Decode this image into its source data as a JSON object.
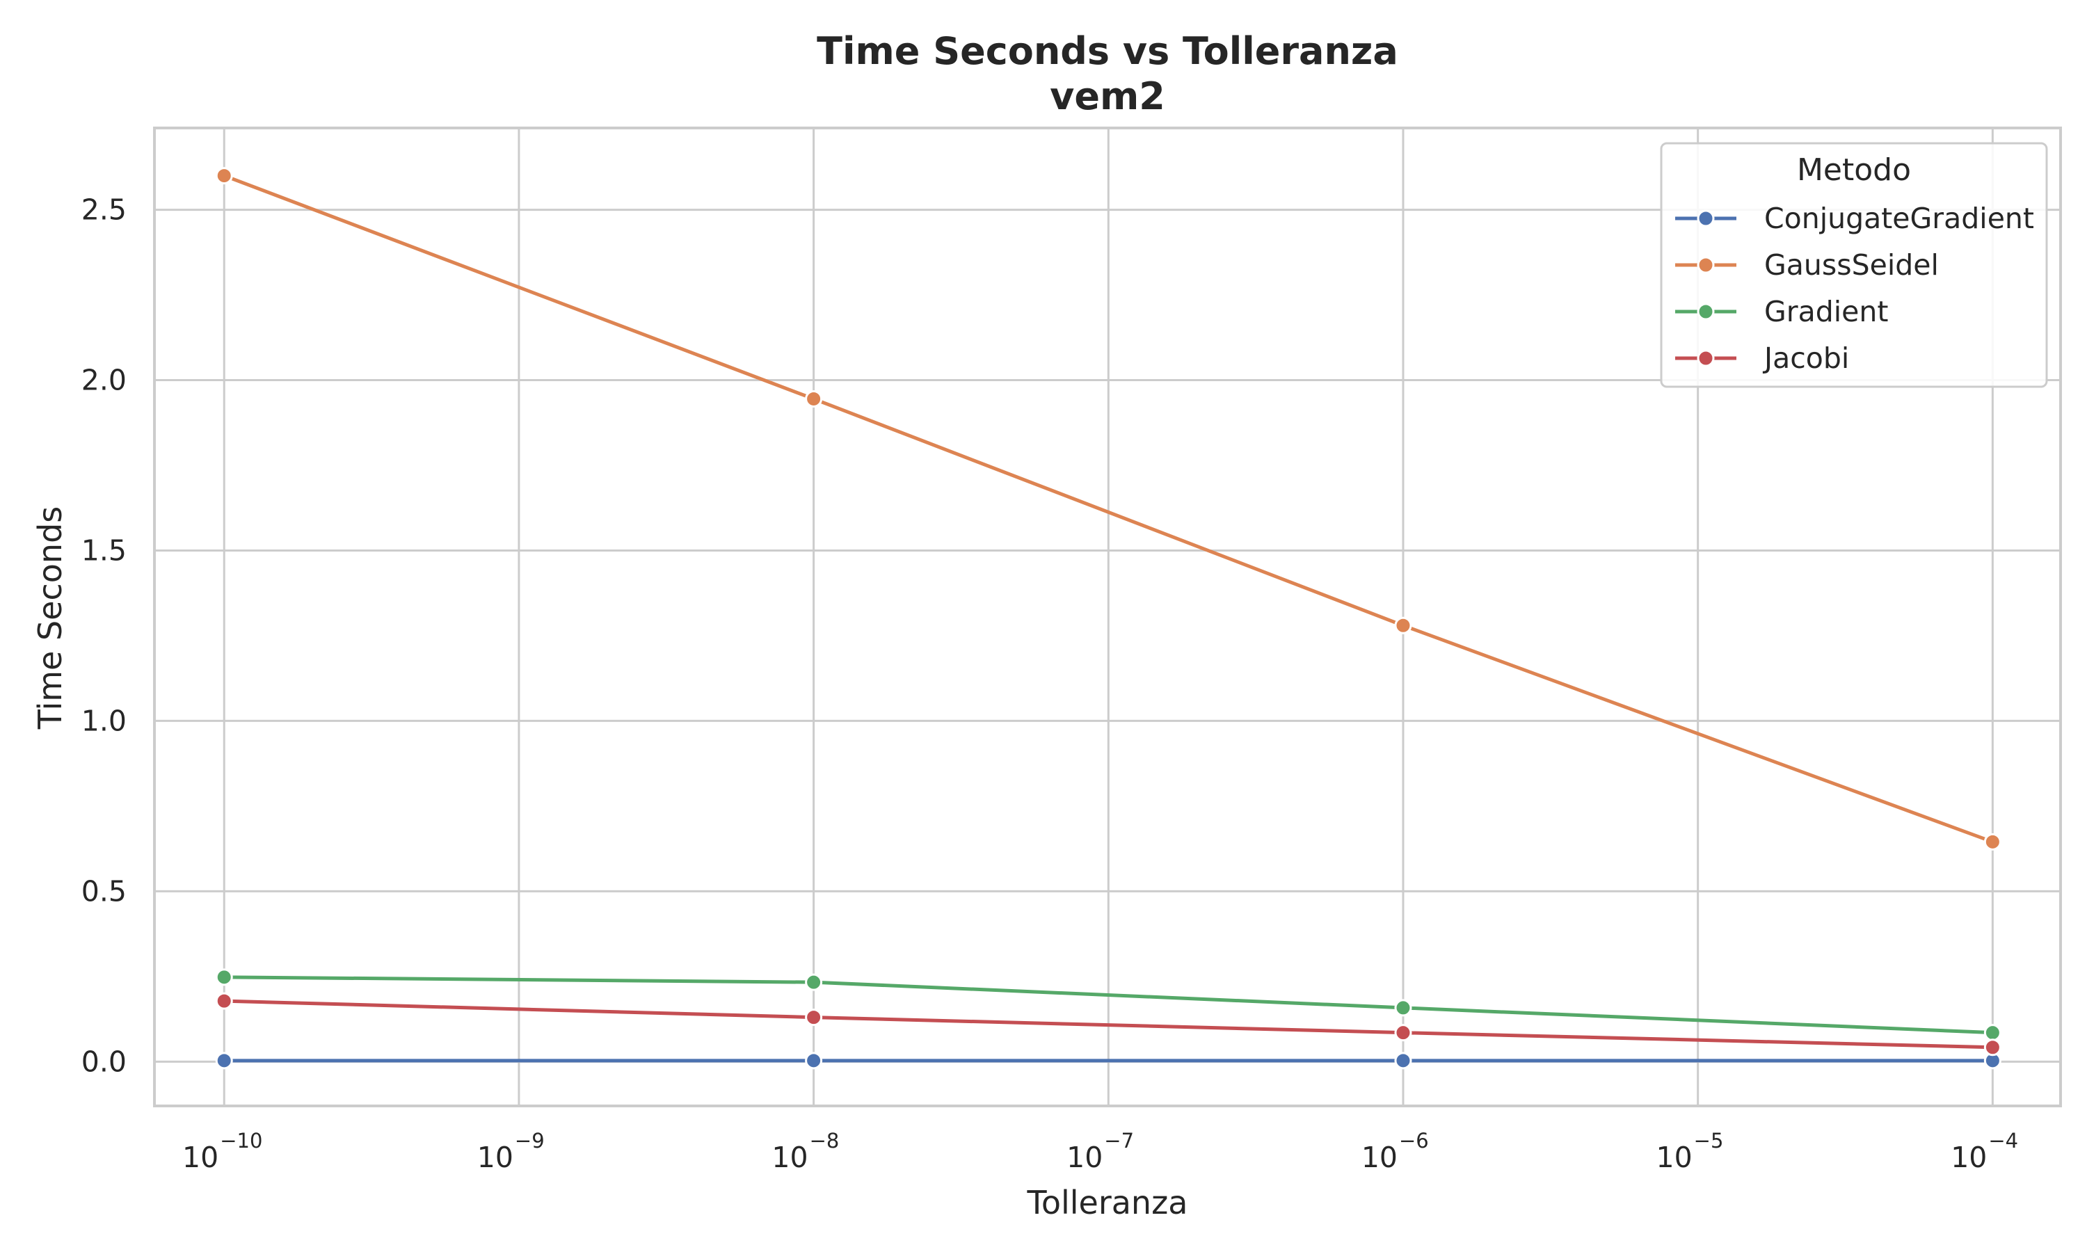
{
  "chart_data": {
    "type": "line",
    "title": [
      "Time Seconds vs        Tolleranza",
      "vem2"
    ],
    "xlabel": "Tolleranza",
    "ylabel": "Time Seconds",
    "xscale": "log",
    "x": [
      1e-10,
      1e-08,
      1e-06,
      0.0001
    ],
    "xlim": [
      5.8e-11,
      0.00017
    ],
    "xticks": [
      {
        "base": "10",
        "exp": "−10",
        "value": 1e-10
      },
      {
        "base": "10",
        "exp": "−9",
        "value": 1e-09
      },
      {
        "base": "10",
        "exp": "−8",
        "value": 1e-08
      },
      {
        "base": "10",
        "exp": "−7",
        "value": 1e-07
      },
      {
        "base": "10",
        "exp": "−6",
        "value": 1e-06
      },
      {
        "base": "10",
        "exp": "−5",
        "value": 1e-05
      },
      {
        "base": "10",
        "exp": "−4",
        "value": 0.0001
      }
    ],
    "ylim": [
      -0.13,
      2.74
    ],
    "yticks": [
      {
        "label": "0.0",
        "value": 0.0
      },
      {
        "label": "0.5",
        "value": 0.5
      },
      {
        "label": "1.0",
        "value": 1.0
      },
      {
        "label": "1.5",
        "value": 1.5
      },
      {
        "label": "2.0",
        "value": 2.0
      },
      {
        "label": "2.5",
        "value": 2.5
      }
    ],
    "grid": true,
    "legend": {
      "title": "Metodo",
      "position": "top-right"
    },
    "series": [
      {
        "name": "ConjugateGradient",
        "color": "#4c72b0",
        "values": [
          0.003,
          0.003,
          0.003,
          0.003
        ]
      },
      {
        "name": "GaussSeidel",
        "color": "#dd8452",
        "values": [
          2.6,
          1.945,
          1.28,
          0.645
        ]
      },
      {
        "name": "Gradient",
        "color": "#55a868",
        "values": [
          0.248,
          0.233,
          0.158,
          0.085
        ]
      },
      {
        "name": "Jacobi",
        "color": "#c44e52",
        "values": [
          0.178,
          0.13,
          0.085,
          0.042
        ]
      }
    ]
  }
}
